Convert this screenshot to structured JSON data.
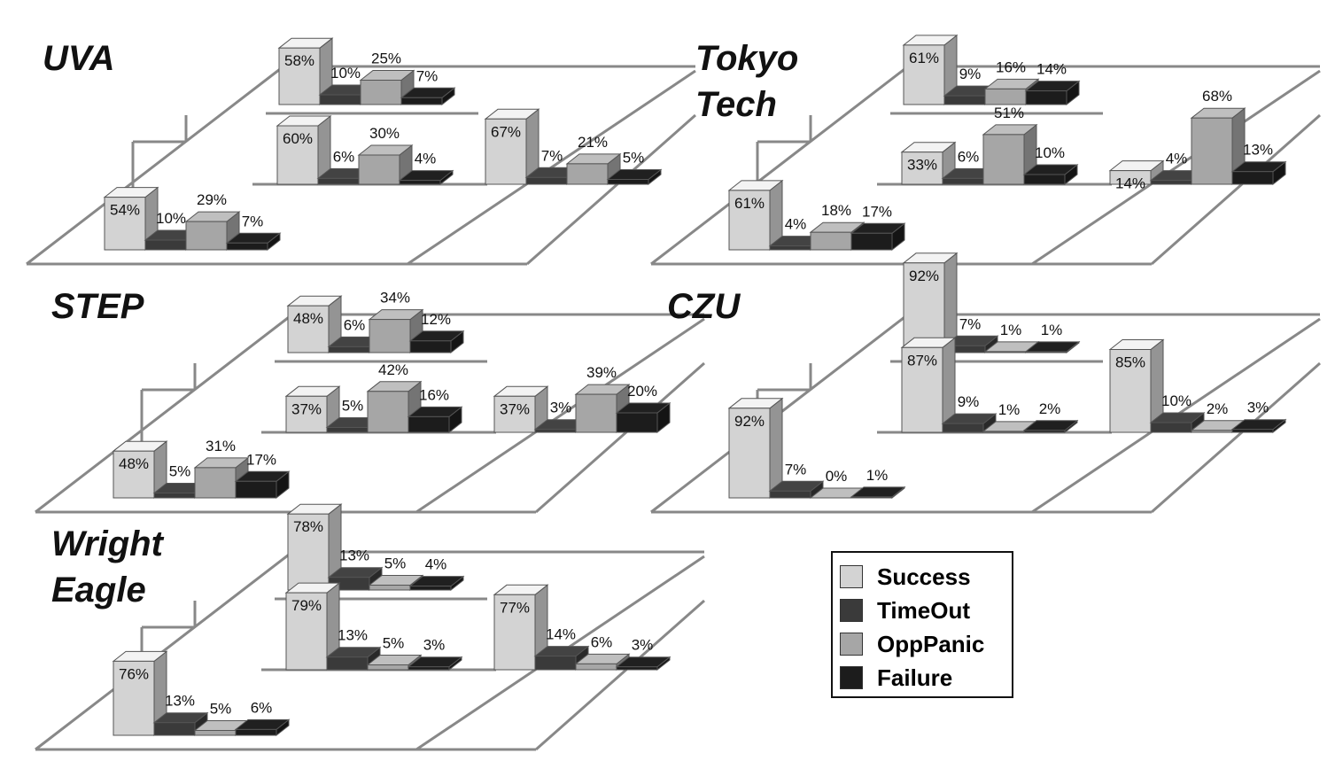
{
  "legend": {
    "entries": [
      {
        "name": "Success",
        "color": "#d3d3d3"
      },
      {
        "name": "TimeOut",
        "color": "#3a3a3a"
      },
      {
        "name": "OppPanic",
        "color": "#a6a6a6"
      },
      {
        "name": "Failure",
        "color": "#1c1c1c"
      }
    ]
  },
  "chart_data": [
    {
      "type": "bar3d",
      "title": "UVA",
      "categories": [
        null,
        null,
        null,
        null
      ],
      "ylim": [
        0,
        100
      ],
      "series": [
        {
          "values": [
            58,
            60,
            67,
            54
          ],
          "value_labels": [
            "58%",
            "60%",
            "67%",
            "54%"
          ]
        },
        {
          "values": [
            10,
            6,
            7,
            10
          ],
          "value_labels": [
            "10%",
            "6%",
            "7%",
            "10%"
          ]
        },
        {
          "values": [
            25,
            30,
            21,
            29
          ],
          "value_labels": [
            "25%",
            "30%",
            "21%",
            "29%"
          ]
        },
        {
          "values": [
            7,
            4,
            5,
            7
          ],
          "value_labels": [
            "7%",
            "4%",
            "5%",
            "7%"
          ]
        }
      ]
    },
    {
      "type": "bar3d",
      "title": "Tokyo Tech",
      "categories": [
        null,
        null,
        null,
        null
      ],
      "ylim": [
        0,
        100
      ],
      "series": [
        {
          "values": [
            61,
            33,
            14,
            61
          ],
          "value_labels": [
            "61%",
            "33%",
            "14%",
            "61%"
          ]
        },
        {
          "values": [
            9,
            6,
            4,
            4
          ],
          "value_labels": [
            "9%",
            "6%",
            "4%",
            "4%"
          ]
        },
        {
          "values": [
            16,
            51,
            68,
            18
          ],
          "value_labels": [
            "16%",
            "51%",
            "68%",
            "18%"
          ]
        },
        {
          "values": [
            14,
            10,
            13,
            17
          ],
          "value_labels": [
            "14%",
            "10%",
            "13%",
            "17%"
          ]
        }
      ]
    },
    {
      "type": "bar3d",
      "title": "STEP",
      "categories": [
        null,
        null,
        null,
        null
      ],
      "ylim": [
        0,
        100
      ],
      "series": [
        {
          "values": [
            48,
            37,
            37,
            48
          ],
          "value_labels": [
            "48%",
            "37%",
            "37%",
            "48%"
          ]
        },
        {
          "values": [
            6,
            5,
            3,
            5
          ],
          "value_labels": [
            "6%",
            "5%",
            "3%",
            "5%"
          ]
        },
        {
          "values": [
            34,
            42,
            39,
            31
          ],
          "value_labels": [
            "34%",
            "42%",
            "39%",
            "31%"
          ]
        },
        {
          "values": [
            12,
            16,
            20,
            17
          ],
          "value_labels": [
            "12%",
            "16%",
            "20%",
            "17%"
          ]
        }
      ]
    },
    {
      "type": "bar3d",
      "title": "CZU",
      "categories": [
        null,
        null,
        null,
        null
      ],
      "ylim": [
        0,
        100
      ],
      "series": [
        {
          "values": [
            92,
            87,
            85,
            92
          ],
          "value_labels": [
            "92%",
            "87%",
            "85%",
            "92%"
          ]
        },
        {
          "values": [
            7,
            9,
            10,
            7
          ],
          "value_labels": [
            "7%",
            "9%",
            "10%",
            "7%"
          ]
        },
        {
          "values": [
            1,
            1,
            2,
            0
          ],
          "value_labels": [
            "1%",
            "1%",
            "2%",
            "0%"
          ]
        },
        {
          "values": [
            1,
            2,
            3,
            1
          ],
          "value_labels": [
            "1%",
            "2%",
            "3%",
            "1%"
          ]
        }
      ]
    },
    {
      "type": "bar3d",
      "title": "Wright Eagle",
      "categories": [
        null,
        null,
        null,
        null
      ],
      "ylim": [
        0,
        100
      ],
      "series": [
        {
          "values": [
            78,
            79,
            77,
            76
          ],
          "value_labels": [
            "78%",
            "79%",
            "77%",
            "76%"
          ]
        },
        {
          "values": [
            13,
            13,
            14,
            13
          ],
          "value_labels": [
            "13%",
            "13%",
            "14%",
            "13%"
          ]
        },
        {
          "values": [
            5,
            5,
            6,
            5
          ],
          "value_labels": [
            "5%",
            "5%",
            "6%",
            "5%"
          ]
        },
        {
          "values": [
            4,
            3,
            3,
            6
          ],
          "value_labels": [
            "4%",
            "3%",
            "3%",
            "6%"
          ]
        }
      ]
    }
  ]
}
